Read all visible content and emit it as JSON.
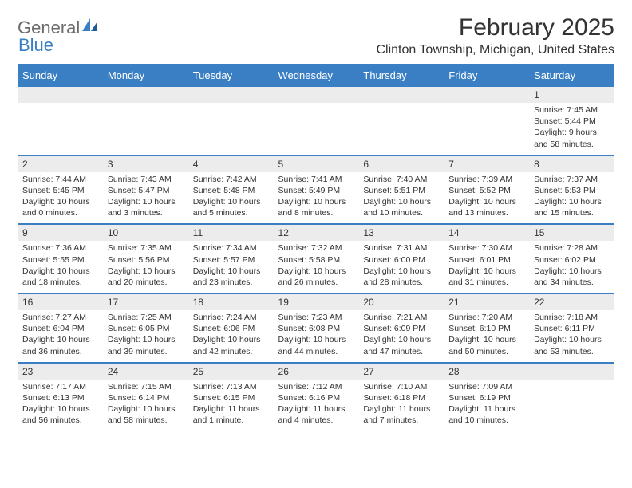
{
  "logo": {
    "general": "General",
    "blue": "Blue",
    "brand_gray": "#6b6b6b",
    "brand_blue": "#3a7fc4"
  },
  "title": "February 2025",
  "location": "Clinton Township, Michigan, United States",
  "colors": {
    "header_bg": "#3a7fc4",
    "header_text": "#ffffff",
    "daynum_bg": "#ececec",
    "border": "#3a7fc4",
    "text": "#333333",
    "page_bg": "#ffffff"
  },
  "fonts": {
    "title_size": 30,
    "location_size": 16,
    "dayheader_size": 13,
    "daynum_size": 12,
    "body_size": 10.5
  },
  "day_headers": [
    "Sunday",
    "Monday",
    "Tuesday",
    "Wednesday",
    "Thursday",
    "Friday",
    "Saturday"
  ],
  "weeks": [
    [
      null,
      null,
      null,
      null,
      null,
      null,
      {
        "n": "1",
        "sr": "Sunrise: 7:45 AM",
        "ss": "Sunset: 5:44 PM",
        "d1": "Daylight: 9 hours",
        "d2": "and 58 minutes."
      }
    ],
    [
      {
        "n": "2",
        "sr": "Sunrise: 7:44 AM",
        "ss": "Sunset: 5:45 PM",
        "d1": "Daylight: 10 hours",
        "d2": "and 0 minutes."
      },
      {
        "n": "3",
        "sr": "Sunrise: 7:43 AM",
        "ss": "Sunset: 5:47 PM",
        "d1": "Daylight: 10 hours",
        "d2": "and 3 minutes."
      },
      {
        "n": "4",
        "sr": "Sunrise: 7:42 AM",
        "ss": "Sunset: 5:48 PM",
        "d1": "Daylight: 10 hours",
        "d2": "and 5 minutes."
      },
      {
        "n": "5",
        "sr": "Sunrise: 7:41 AM",
        "ss": "Sunset: 5:49 PM",
        "d1": "Daylight: 10 hours",
        "d2": "and 8 minutes."
      },
      {
        "n": "6",
        "sr": "Sunrise: 7:40 AM",
        "ss": "Sunset: 5:51 PM",
        "d1": "Daylight: 10 hours",
        "d2": "and 10 minutes."
      },
      {
        "n": "7",
        "sr": "Sunrise: 7:39 AM",
        "ss": "Sunset: 5:52 PM",
        "d1": "Daylight: 10 hours",
        "d2": "and 13 minutes."
      },
      {
        "n": "8",
        "sr": "Sunrise: 7:37 AM",
        "ss": "Sunset: 5:53 PM",
        "d1": "Daylight: 10 hours",
        "d2": "and 15 minutes."
      }
    ],
    [
      {
        "n": "9",
        "sr": "Sunrise: 7:36 AM",
        "ss": "Sunset: 5:55 PM",
        "d1": "Daylight: 10 hours",
        "d2": "and 18 minutes."
      },
      {
        "n": "10",
        "sr": "Sunrise: 7:35 AM",
        "ss": "Sunset: 5:56 PM",
        "d1": "Daylight: 10 hours",
        "d2": "and 20 minutes."
      },
      {
        "n": "11",
        "sr": "Sunrise: 7:34 AM",
        "ss": "Sunset: 5:57 PM",
        "d1": "Daylight: 10 hours",
        "d2": "and 23 minutes."
      },
      {
        "n": "12",
        "sr": "Sunrise: 7:32 AM",
        "ss": "Sunset: 5:58 PM",
        "d1": "Daylight: 10 hours",
        "d2": "and 26 minutes."
      },
      {
        "n": "13",
        "sr": "Sunrise: 7:31 AM",
        "ss": "Sunset: 6:00 PM",
        "d1": "Daylight: 10 hours",
        "d2": "and 28 minutes."
      },
      {
        "n": "14",
        "sr": "Sunrise: 7:30 AM",
        "ss": "Sunset: 6:01 PM",
        "d1": "Daylight: 10 hours",
        "d2": "and 31 minutes."
      },
      {
        "n": "15",
        "sr": "Sunrise: 7:28 AM",
        "ss": "Sunset: 6:02 PM",
        "d1": "Daylight: 10 hours",
        "d2": "and 34 minutes."
      }
    ],
    [
      {
        "n": "16",
        "sr": "Sunrise: 7:27 AM",
        "ss": "Sunset: 6:04 PM",
        "d1": "Daylight: 10 hours",
        "d2": "and 36 minutes."
      },
      {
        "n": "17",
        "sr": "Sunrise: 7:25 AM",
        "ss": "Sunset: 6:05 PM",
        "d1": "Daylight: 10 hours",
        "d2": "and 39 minutes."
      },
      {
        "n": "18",
        "sr": "Sunrise: 7:24 AM",
        "ss": "Sunset: 6:06 PM",
        "d1": "Daylight: 10 hours",
        "d2": "and 42 minutes."
      },
      {
        "n": "19",
        "sr": "Sunrise: 7:23 AM",
        "ss": "Sunset: 6:08 PM",
        "d1": "Daylight: 10 hours",
        "d2": "and 44 minutes."
      },
      {
        "n": "20",
        "sr": "Sunrise: 7:21 AM",
        "ss": "Sunset: 6:09 PM",
        "d1": "Daylight: 10 hours",
        "d2": "and 47 minutes."
      },
      {
        "n": "21",
        "sr": "Sunrise: 7:20 AM",
        "ss": "Sunset: 6:10 PM",
        "d1": "Daylight: 10 hours",
        "d2": "and 50 minutes."
      },
      {
        "n": "22",
        "sr": "Sunrise: 7:18 AM",
        "ss": "Sunset: 6:11 PM",
        "d1": "Daylight: 10 hours",
        "d2": "and 53 minutes."
      }
    ],
    [
      {
        "n": "23",
        "sr": "Sunrise: 7:17 AM",
        "ss": "Sunset: 6:13 PM",
        "d1": "Daylight: 10 hours",
        "d2": "and 56 minutes."
      },
      {
        "n": "24",
        "sr": "Sunrise: 7:15 AM",
        "ss": "Sunset: 6:14 PM",
        "d1": "Daylight: 10 hours",
        "d2": "and 58 minutes."
      },
      {
        "n": "25",
        "sr": "Sunrise: 7:13 AM",
        "ss": "Sunset: 6:15 PM",
        "d1": "Daylight: 11 hours",
        "d2": "and 1 minute."
      },
      {
        "n": "26",
        "sr": "Sunrise: 7:12 AM",
        "ss": "Sunset: 6:16 PM",
        "d1": "Daylight: 11 hours",
        "d2": "and 4 minutes."
      },
      {
        "n": "27",
        "sr": "Sunrise: 7:10 AM",
        "ss": "Sunset: 6:18 PM",
        "d1": "Daylight: 11 hours",
        "d2": "and 7 minutes."
      },
      {
        "n": "28",
        "sr": "Sunrise: 7:09 AM",
        "ss": "Sunset: 6:19 PM",
        "d1": "Daylight: 11 hours",
        "d2": "and 10 minutes."
      },
      null
    ]
  ]
}
